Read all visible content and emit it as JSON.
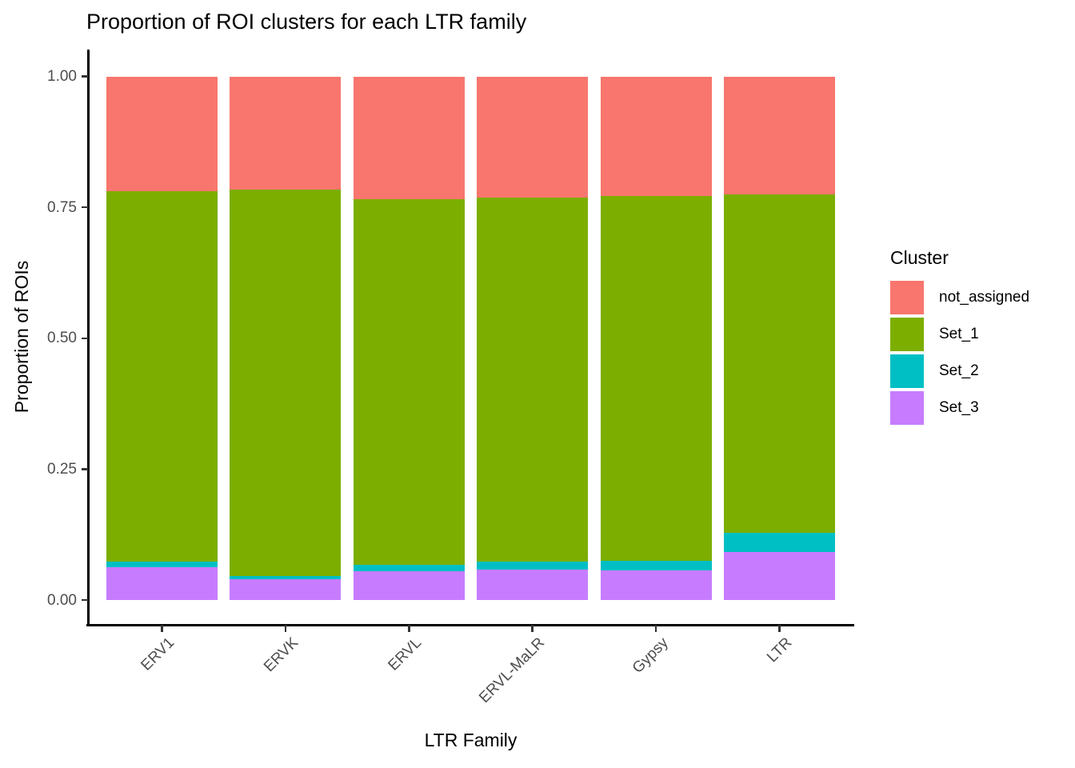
{
  "title": "Proportion of ROI clusters for each LTR family",
  "axes": {
    "x_label": "LTR Family",
    "y_label": "Proportion of ROIs",
    "y_ticks": [
      {
        "label": "0.00",
        "value": 0.0
      },
      {
        "label": "0.25",
        "value": 0.25
      },
      {
        "label": "0.50",
        "value": 0.5
      },
      {
        "label": "0.75",
        "value": 0.75
      },
      {
        "label": "1.00",
        "value": 1.0
      }
    ]
  },
  "legend": {
    "title": "Cluster",
    "entries": [
      {
        "label": "not_assigned",
        "color": "#F8766D"
      },
      {
        "label": "Set_1",
        "color": "#7CAE00"
      },
      {
        "label": "Set_2",
        "color": "#00BFC4"
      },
      {
        "label": "Set_3",
        "color": "#C77CFF"
      }
    ]
  },
  "colors": {
    "not_assigned": "#F8766D",
    "Set_1": "#7CAE00",
    "Set_2": "#00BFC4",
    "Set_3": "#C77CFF",
    "axis_text": "#4d4d4d",
    "axis_line": "#000000",
    "background": "#ffffff"
  },
  "chart_data": {
    "type": "bar",
    "stacked": true,
    "title": "Proportion of ROI clusters for each LTR family",
    "xlabel": "LTR Family",
    "ylabel": "Proportion of ROIs",
    "ylim": [
      0,
      1
    ],
    "grid": false,
    "legend_position": "right",
    "legend_title": "Cluster",
    "categories": [
      "ERV1",
      "ERVK",
      "ERVL",
      "ERVL-MaLR",
      "Gypsy",
      "LTR"
    ],
    "stack_order_bottom_to_top": [
      "Set_3",
      "Set_2",
      "Set_1",
      "not_assigned"
    ],
    "series": [
      {
        "name": "not_assigned",
        "color": "#F8766D",
        "values": [
          0.22,
          0.216,
          0.234,
          0.231,
          0.228,
          0.226
        ]
      },
      {
        "name": "Set_1",
        "color": "#7CAE00",
        "values": [
          0.706,
          0.738,
          0.699,
          0.696,
          0.697,
          0.646
        ]
      },
      {
        "name": "Set_2",
        "color": "#00BFC4",
        "values": [
          0.012,
          0.007,
          0.012,
          0.015,
          0.018,
          0.037
        ]
      },
      {
        "name": "Set_3",
        "color": "#C77CFF",
        "values": [
          0.062,
          0.039,
          0.055,
          0.058,
          0.057,
          0.091
        ]
      }
    ]
  }
}
